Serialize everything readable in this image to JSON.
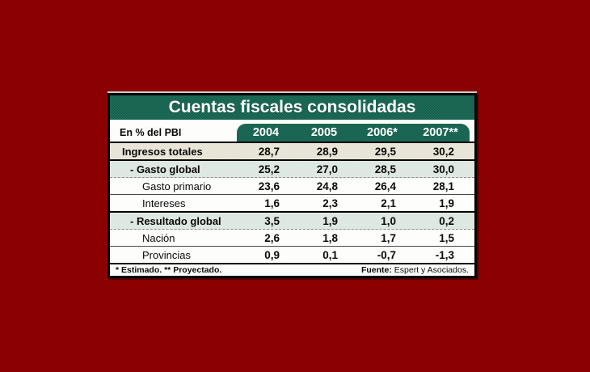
{
  "colors": {
    "page_background": "#8B0000",
    "header_green": "#1b6b58",
    "total_row_bg": "#eae6da",
    "group_row_bg": "#dfe9e3",
    "border_black": "#050505"
  },
  "table": {
    "title": "Cuentas fiscales consolidadas",
    "unit_label": "En % del PBI",
    "columns": [
      "2004",
      "2005",
      "2006*",
      "2007**"
    ],
    "rows": [
      {
        "label": "Ingresos totales",
        "values": [
          "28,7",
          "28,9",
          "29,5",
          "30,2"
        ]
      },
      {
        "label": "- Gasto global",
        "values": [
          "25,2",
          "27,0",
          "28,5",
          "30,0"
        ]
      },
      {
        "label": "Gasto primario",
        "values": [
          "23,6",
          "24,8",
          "26,4",
          "28,1"
        ]
      },
      {
        "label": "Intereses",
        "values": [
          "1,6",
          "2,3",
          "2,1",
          "1,9"
        ]
      },
      {
        "label": "- Resultado global",
        "values": [
          "3,5",
          "1,9",
          "1,0",
          "0,2"
        ]
      },
      {
        "label": "Nación",
        "values": [
          "2,6",
          "1,8",
          "1,7",
          "1,5"
        ]
      },
      {
        "label": "Provincias",
        "values": [
          "0,9",
          "0,1",
          "-0,7",
          "-1,3"
        ]
      }
    ],
    "footnote": "* Estimado. ** Proyectado.",
    "source_label": "Fuente:",
    "source_text": " Espert y Asociados."
  },
  "chart_data": {
    "type": "table",
    "title": "Cuentas fiscales consolidadas",
    "unit": "En % del PBI",
    "categories": [
      "2004",
      "2005",
      "2006 (estimado)",
      "2007 (proyectado)"
    ],
    "series": [
      {
        "name": "Ingresos totales",
        "values": [
          28.7,
          28.9,
          29.5,
          30.2
        ]
      },
      {
        "name": "Gasto global",
        "values": [
          25.2,
          27.0,
          28.5,
          30.0
        ]
      },
      {
        "name": "Gasto primario",
        "values": [
          23.6,
          24.8,
          26.4,
          28.1
        ]
      },
      {
        "name": "Intereses",
        "values": [
          1.6,
          2.3,
          2.1,
          1.9
        ]
      },
      {
        "name": "Resultado global",
        "values": [
          3.5,
          1.9,
          1.0,
          0.2
        ]
      },
      {
        "name": "Nación",
        "values": [
          2.6,
          1.8,
          1.7,
          1.5
        ]
      },
      {
        "name": "Provincias",
        "values": [
          0.9,
          0.1,
          -0.7,
          -1.3
        ]
      }
    ],
    "source": "Fuente: Espert y Asociados.",
    "footnotes": [
      "* Estimado.",
      "** Proyectado."
    ]
  }
}
